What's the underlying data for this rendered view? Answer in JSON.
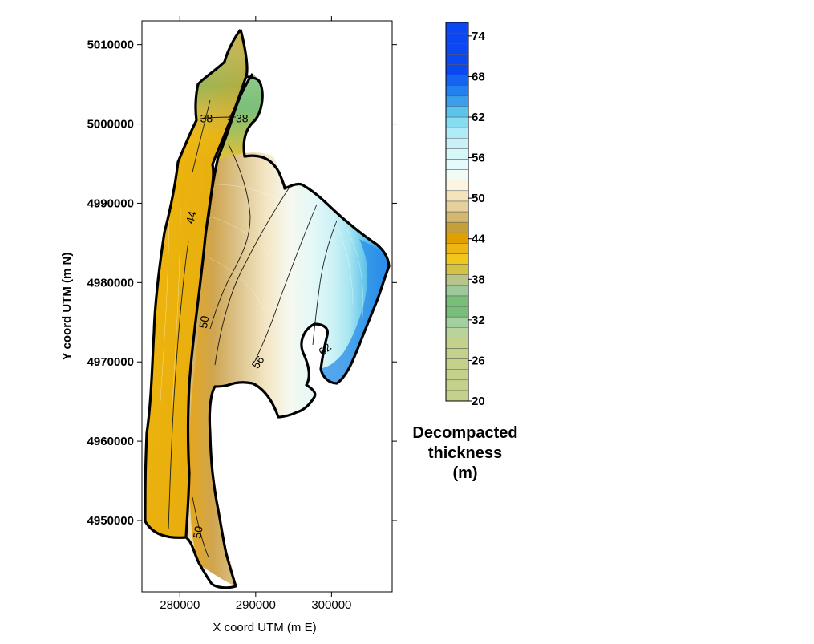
{
  "chart_data": {
    "type": "contour-map",
    "xlabel": "X coord UTM (m E)",
    "ylabel": "Y coord UTM (m N)",
    "xlim": [
      275000,
      308000
    ],
    "ylim": [
      4941000,
      5013000
    ],
    "x_ticks": [
      {
        "value": 280000,
        "label": "280000"
      },
      {
        "value": 290000,
        "label": "290000"
      },
      {
        "value": 300000,
        "label": "300000"
      }
    ],
    "y_ticks": [
      {
        "value": 4950000,
        "label": "4950000"
      },
      {
        "value": 4960000,
        "label": "4960000"
      },
      {
        "value": 4970000,
        "label": "4970000"
      },
      {
        "value": 4980000,
        "label": "4980000"
      },
      {
        "value": 4990000,
        "label": "4990000"
      },
      {
        "value": 5000000,
        "label": "5000000"
      },
      {
        "value": 5010000,
        "label": "5010000"
      }
    ],
    "contour_labels": [
      {
        "text": "38",
        "x": 283500,
        "y": 5000600
      },
      {
        "text": "38",
        "x": 288200,
        "y": 5000600
      },
      {
        "text": "44",
        "x": 281600,
        "y": 4988200
      },
      {
        "text": "50",
        "x": 283300,
        "y": 4975000
      },
      {
        "text": "56",
        "x": 290400,
        "y": 4969900
      },
      {
        "text": "62",
        "x": 299200,
        "y": 4971500
      },
      {
        "text": "50",
        "x": 282500,
        "y": 4948500
      }
    ],
    "colorbar": {
      "title_lines": [
        "Decompacted",
        "thickness",
        "(m)"
      ],
      "min": 20,
      "max": 76,
      "step": 2,
      "tick_labels": [
        "74",
        "68",
        "62",
        "56",
        "50",
        "44",
        "38",
        "32",
        "26",
        "20"
      ],
      "colors": [
        "#c4d18a",
        "#c4d18a",
        "#c4d18a",
        "#c4d18a",
        "#c4d18a",
        "#c4d18a",
        "#b9d49a",
        "#a3d0a0",
        "#78be78",
        "#78be78",
        "#9ec79a",
        "#b9c48a",
        "#d2c344",
        "#f0c81c",
        "#eeb612",
        "#e0a000",
        "#c49f3a",
        "#d4b870",
        "#e6d09c",
        "#f4e4bc",
        "#fbf4e0",
        "#f1fbf6",
        "#e4fafc",
        "#d6f8fa",
        "#c8f2f8",
        "#b0ecf8",
        "#86dcf0",
        "#5cc4ea",
        "#3a9eea",
        "#2281ec",
        "#1464f0",
        "#0c48f2",
        "#0c48f2",
        "#0c48f2",
        "#0c48f2",
        "#0c48f2"
      ]
    }
  }
}
